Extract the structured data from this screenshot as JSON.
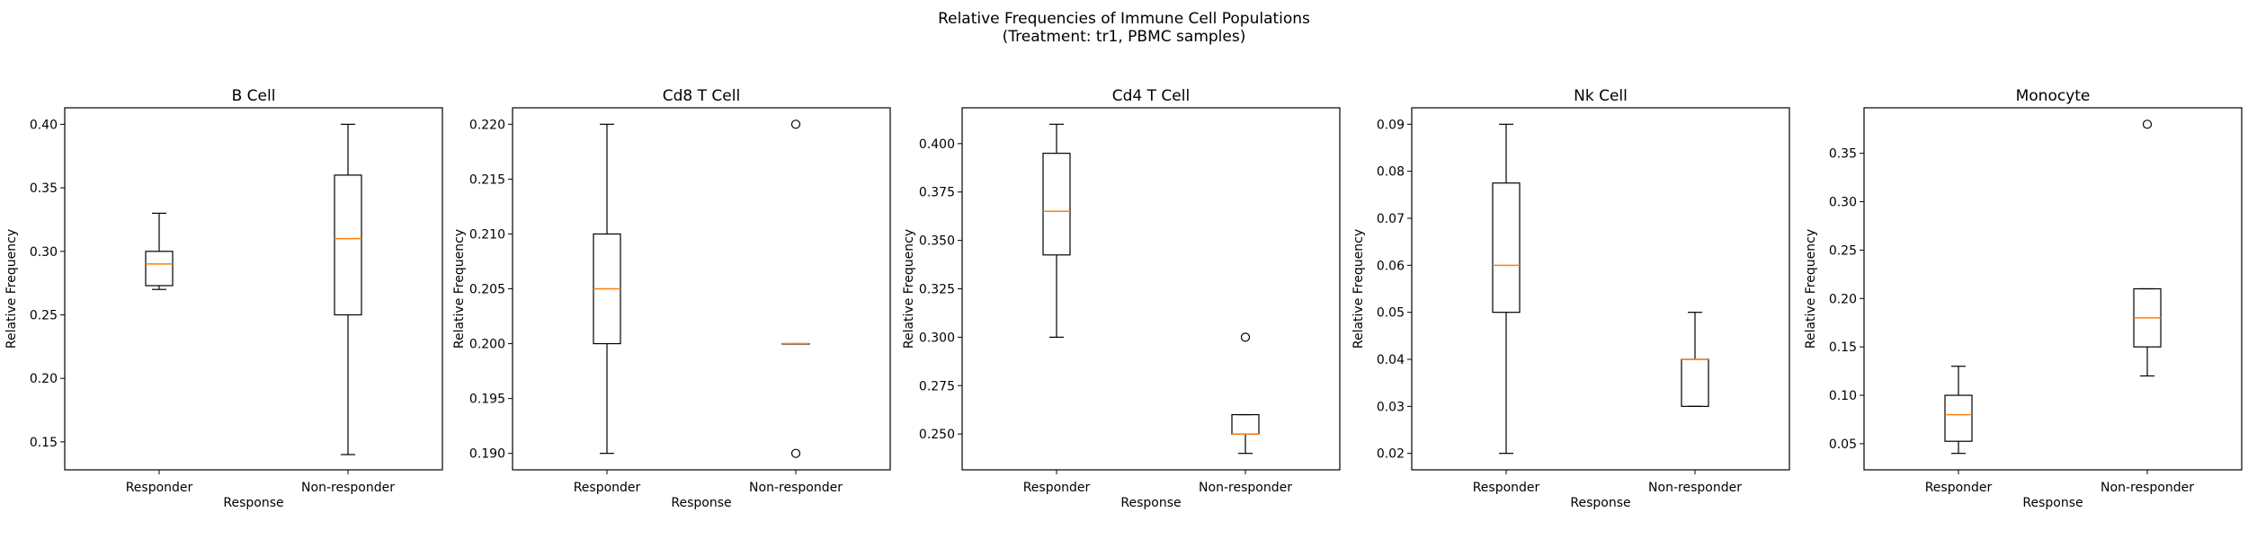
{
  "figure": {
    "title_line1": "Relative Frequencies of Immune Cell Populations",
    "title_line2": "(Treatment: tr1, PBMC samples)"
  },
  "colors": {
    "box": "#000000",
    "median": "#ff7f0e",
    "outlier": "#000000",
    "background": "#ffffff"
  },
  "chart_data": [
    {
      "type": "box",
      "title": "B Cell",
      "xlabel": "Response",
      "ylabel": "Relative Frequency",
      "categories": [
        "Responder",
        "Non-responder"
      ],
      "ylim": [
        0.128,
        0.413
      ],
      "yticks": [
        0.15,
        0.2,
        0.25,
        0.3,
        0.35,
        0.4
      ],
      "ytick_labels": [
        "0.15",
        "0.20",
        "0.25",
        "0.30",
        "0.35",
        "0.40"
      ],
      "boxes": [
        {
          "whislo": 0.27,
          "q1": 0.273,
          "med": 0.29,
          "q3": 0.3,
          "whishi": 0.33,
          "fliers": []
        },
        {
          "whislo": 0.14,
          "q1": 0.25,
          "med": 0.31,
          "q3": 0.36,
          "whishi": 0.4,
          "fliers": []
        }
      ]
    },
    {
      "type": "box",
      "title": "Cd8 T Cell",
      "xlabel": "Response",
      "ylabel": "Relative Frequency",
      "categories": [
        "Responder",
        "Non-responder"
      ],
      "ylim": [
        0.1885,
        0.2215
      ],
      "yticks": [
        0.19,
        0.195,
        0.2,
        0.205,
        0.21,
        0.215,
        0.22
      ],
      "ytick_labels": [
        "0.190",
        "0.195",
        "0.200",
        "0.205",
        "0.210",
        "0.215",
        "0.220"
      ],
      "boxes": [
        {
          "whislo": 0.19,
          "q1": 0.2,
          "med": 0.205,
          "q3": 0.21,
          "whishi": 0.22,
          "fliers": []
        },
        {
          "whislo": 0.2,
          "q1": 0.2,
          "med": 0.2,
          "q3": 0.2,
          "whishi": 0.2,
          "fliers": [
            0.22,
            0.19
          ]
        }
      ]
    },
    {
      "type": "box",
      "title": "Cd4 T Cell",
      "xlabel": "Response",
      "ylabel": "Relative Frequency",
      "categories": [
        "Responder",
        "Non-responder"
      ],
      "ylim": [
        0.2315,
        0.4185
      ],
      "yticks": [
        0.25,
        0.275,
        0.3,
        0.325,
        0.35,
        0.375,
        0.4
      ],
      "ytick_labels": [
        "0.250",
        "0.275",
        "0.300",
        "0.325",
        "0.350",
        "0.375",
        "0.400"
      ],
      "boxes": [
        {
          "whislo": 0.3,
          "q1": 0.3425,
          "med": 0.365,
          "q3": 0.395,
          "whishi": 0.41,
          "fliers": []
        },
        {
          "whislo": 0.24,
          "q1": 0.25,
          "med": 0.25,
          "q3": 0.26,
          "whishi": 0.26,
          "fliers": [
            0.3
          ]
        }
      ]
    },
    {
      "type": "box",
      "title": "Nk Cell",
      "xlabel": "Response",
      "ylabel": "Relative Frequency",
      "categories": [
        "Responder",
        "Non-responder"
      ],
      "ylim": [
        0.0165,
        0.0935
      ],
      "yticks": [
        0.02,
        0.03,
        0.04,
        0.05,
        0.06,
        0.07,
        0.08,
        0.09
      ],
      "ytick_labels": [
        "0.02",
        "0.03",
        "0.04",
        "0.05",
        "0.06",
        "0.07",
        "0.08",
        "0.09"
      ],
      "boxes": [
        {
          "whislo": 0.02,
          "q1": 0.05,
          "med": 0.06,
          "q3": 0.0775,
          "whishi": 0.09,
          "fliers": []
        },
        {
          "whislo": 0.03,
          "q1": 0.03,
          "med": 0.04,
          "q3": 0.04,
          "whishi": 0.05,
          "fliers": []
        }
      ]
    },
    {
      "type": "box",
      "title": "Monocyte",
      "xlabel": "Response",
      "ylabel": "Relative Frequency",
      "categories": [
        "Responder",
        "Non-responder"
      ],
      "ylim": [
        0.023,
        0.397
      ],
      "yticks": [
        0.05,
        0.1,
        0.15,
        0.2,
        0.25,
        0.3,
        0.35
      ],
      "ytick_labels": [
        "0.05",
        "0.10",
        "0.15",
        "0.20",
        "0.25",
        "0.30",
        "0.35"
      ],
      "boxes": [
        {
          "whislo": 0.04,
          "q1": 0.0525,
          "med": 0.08,
          "q3": 0.1,
          "whishi": 0.13,
          "fliers": []
        },
        {
          "whislo": 0.12,
          "q1": 0.15,
          "med": 0.18,
          "q3": 0.21,
          "whishi": 0.21,
          "fliers": [
            0.38
          ]
        }
      ]
    }
  ]
}
